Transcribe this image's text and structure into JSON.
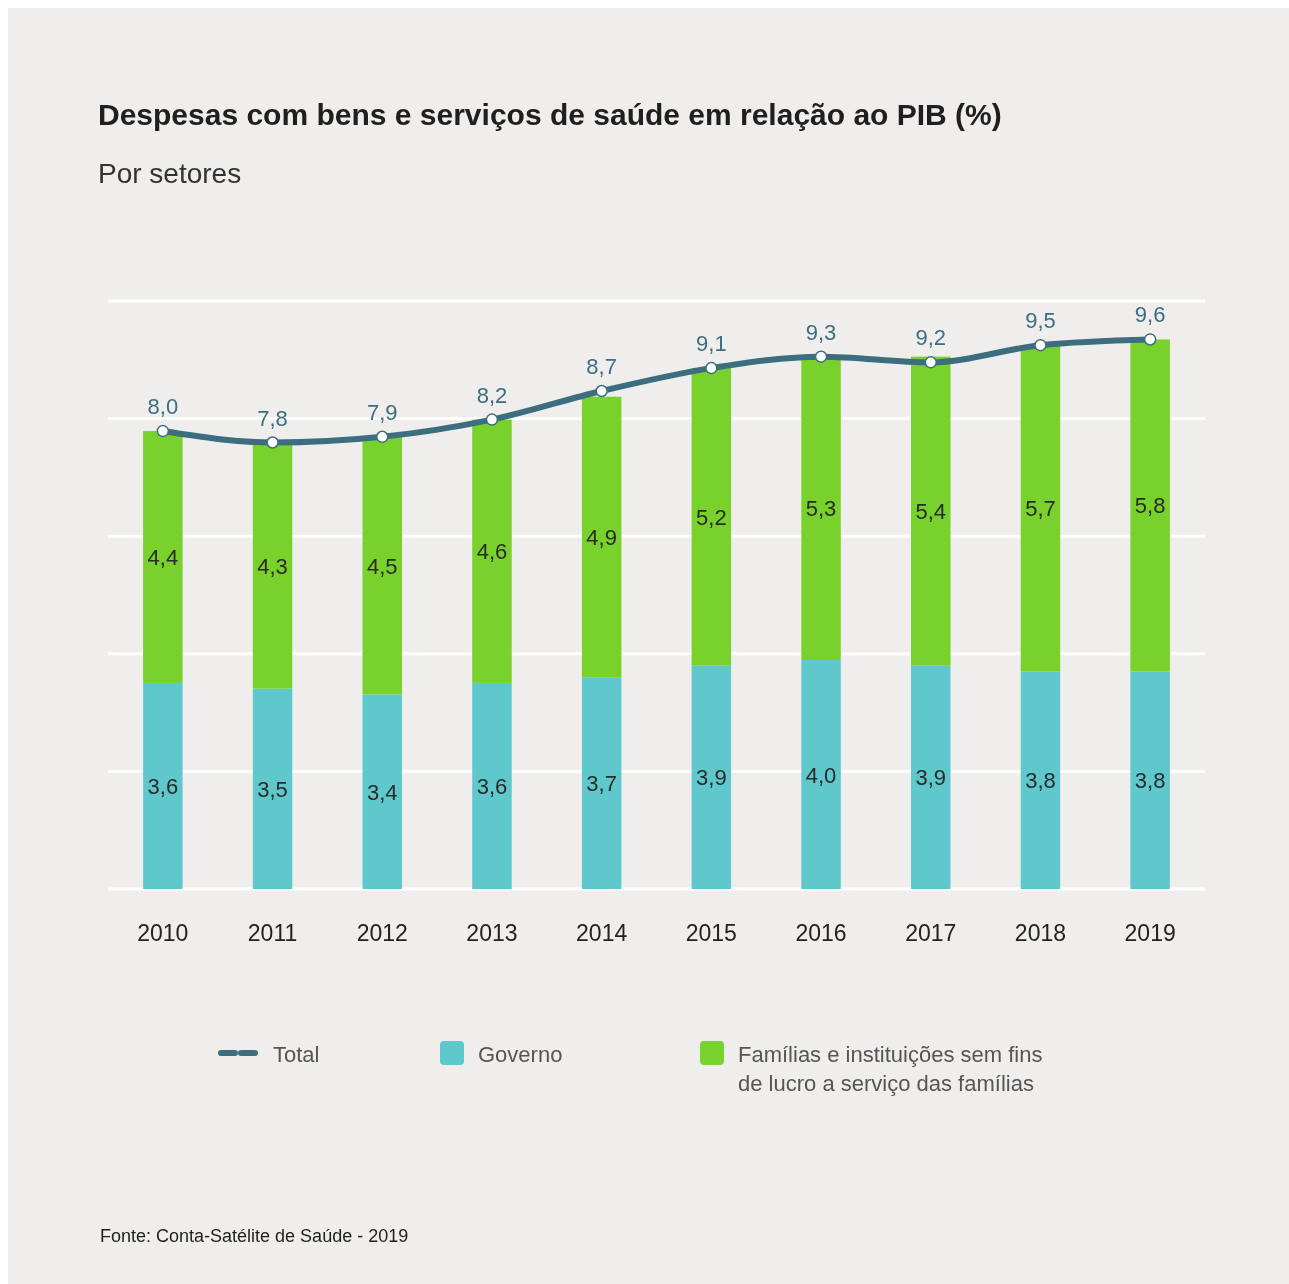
{
  "chart_data": {
    "type": "bar",
    "title": "Despesas com bens e serviços de saúde em relação ao PIB (%)",
    "subtitle": "Por setores",
    "categories": [
      "2010",
      "2011",
      "2012",
      "2013",
      "2014",
      "2015",
      "2016",
      "2017",
      "2018",
      "2019"
    ],
    "stacked": true,
    "series": [
      {
        "name": "Governo",
        "color": "#5ec8cc",
        "values": [
          3.6,
          3.5,
          3.4,
          3.6,
          3.7,
          3.9,
          4.0,
          3.9,
          3.8,
          3.8
        ],
        "value_labels": [
          "3,6",
          "3,5",
          "3,4",
          "3,6",
          "3,7",
          "3,9",
          "4,0",
          "3,9",
          "3,8",
          "3,8"
        ]
      },
      {
        "name": "Famílias e instituições sem fins de lucro a serviço das famílias",
        "color": "#79d12c",
        "values": [
          4.4,
          4.3,
          4.5,
          4.6,
          4.9,
          5.2,
          5.3,
          5.4,
          5.7,
          5.8
        ],
        "value_labels": [
          "4,4",
          "4,3",
          "4,5",
          "4,6",
          "4,9",
          "5,2",
          "5,3",
          "5,4",
          "5,7",
          "5,8"
        ]
      },
      {
        "name": "Total",
        "type": "line",
        "color": "#3d6e80",
        "values": [
          8.0,
          7.8,
          7.9,
          8.2,
          8.7,
          9.1,
          9.3,
          9.2,
          9.5,
          9.6
        ],
        "value_labels": [
          "8,0",
          "7,8",
          "7,9",
          "8,2",
          "8,7",
          "9,1",
          "9,3",
          "9,2",
          "9,5",
          "9,6"
        ]
      }
    ],
    "grid": true,
    "marker": "circle",
    "legend": "bottom",
    "annotations": [
      "Fonte: Conta-Satélite de Saúde - 2019"
    ]
  }
}
